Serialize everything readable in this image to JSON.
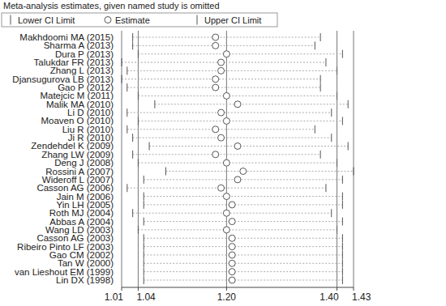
{
  "chart_data": {
    "type": "forest",
    "title": "Meta-analysis estimates, given named study is omitted",
    "legend_labels": [
      "Lower CI Limit",
      "Estimate",
      "Upper CI Limit"
    ],
    "legend": "top",
    "color": "#555555",
    "grid": true,
    "categories": [
      "Makhdoomi MA (2015)",
      "Sharma A (2013)",
      "Dura P (2013)",
      "Talukdar FR (2013)",
      "Zhang L (2013)",
      "Djansugurova LB (2013)",
      "Gao P (2012)",
      "Matejcic M (2011)",
      "Malik MA (2010)",
      "Li D (2010)",
      "Moaven O (2010)",
      "Liu R (2010)",
      "Ji R (2010)",
      "Zendehdel K (2009)",
      "Zhang LW (2009)",
      "Deng J (2008)",
      "Rossini A (2007)",
      "Wideroff L (2007)",
      "Casson AG (2006)",
      "Jain M (2006)",
      "Yin LH (2005)",
      "Roth MJ (2004)",
      "Abbas A (2004)",
      "Wang LD (2003)",
      "Casson AG (2003)",
      "Ribeiro Pinto LF (2003)",
      "Gao CM (2002)",
      "Tan W (2000)",
      "van Lieshout EM (1999)",
      "Lin DX (1998)"
    ],
    "values": [
      1.18,
      1.18,
      1.2,
      1.19,
      1.19,
      1.18,
      1.18,
      1.2,
      1.22,
      1.19,
      1.2,
      1.18,
      1.19,
      1.22,
      1.18,
      1.2,
      1.23,
      1.22,
      1.19,
      1.2,
      1.21,
      1.2,
      1.21,
      1.2,
      1.21,
      1.21,
      1.21,
      1.21,
      1.21,
      1.21
    ],
    "lower": [
      1.03,
      1.03,
      1.04,
      1.01,
      1.02,
      1.01,
      1.02,
      1.04,
      1.07,
      1.02,
      1.04,
      1.02,
      1.03,
      1.06,
      1.03,
      1.04,
      1.09,
      1.05,
      1.02,
      1.05,
      1.05,
      1.03,
      1.05,
      1.04,
      1.05,
      1.05,
      1.05,
      1.05,
      1.05,
      1.05
    ],
    "upper": [
      1.37,
      1.36,
      1.41,
      1.38,
      1.4,
      1.37,
      1.37,
      1.4,
      1.42,
      1.39,
      1.41,
      1.36,
      1.39,
      1.42,
      1.37,
      1.4,
      1.43,
      1.41,
      1.38,
      1.41,
      1.41,
      1.39,
      1.41,
      1.4,
      1.41,
      1.41,
      1.41,
      1.41,
      1.41,
      1.41
    ],
    "xlim": [
      1.01,
      1.43
    ],
    "xticks": [
      1.01,
      1.04,
      {
        "value": 1.2,
        "label": "1.20"
      },
      {
        "value": 1.4,
        "label": "1.40"
      },
      1.43
    ]
  }
}
